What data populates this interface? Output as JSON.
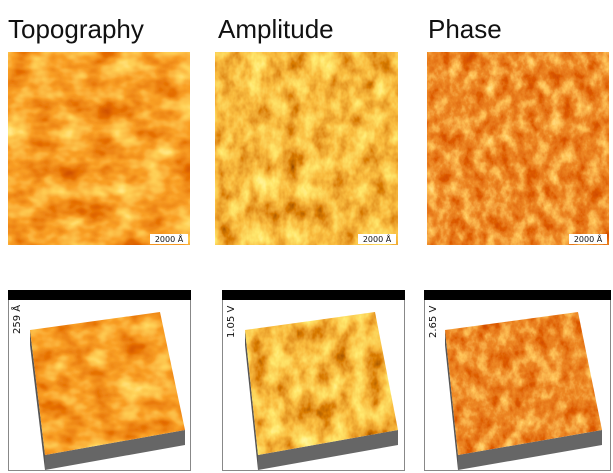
{
  "panels": [
    {
      "title": "Topography",
      "scale_bar": "2000 Å",
      "height_label": "259 Å"
    },
    {
      "title": "Amplitude",
      "scale_bar": "2000 Å",
      "height_label": "1.05 V"
    },
    {
      "title": "Phase",
      "scale_bar": "2000 Å",
      "height_label": "2.65 V"
    }
  ]
}
